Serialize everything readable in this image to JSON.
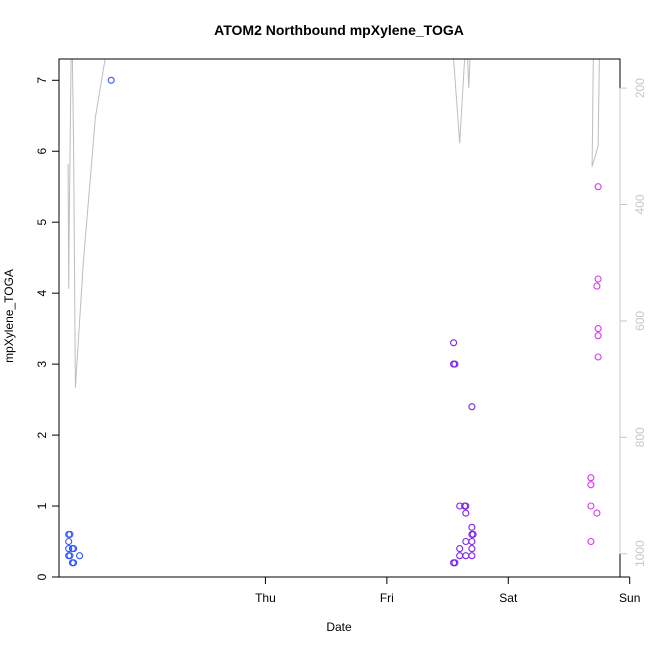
{
  "chart_data": {
    "type": "scatter",
    "title": "ATOM2 Northbound mpXylene_TOGA",
    "xlabel": "Date",
    "ylabel": "mpXylene_TOGA",
    "x_ticks": [
      {
        "label": "Thu",
        "day": 1.0
      },
      {
        "label": "Fri",
        "day": 2.0
      },
      {
        "label": "Sat",
        "day": 3.0
      },
      {
        "label": "Sun",
        "day": 4.0
      }
    ],
    "xlim_days": [
      -0.7,
      3.92
    ],
    "ylim": [
      0,
      7.3
    ],
    "y_ticks": [
      0,
      1,
      2,
      3,
      4,
      5,
      6,
      7
    ],
    "y_right": {
      "reversed": true,
      "ylim": [
        1040,
        150
      ],
      "ticks": [
        200,
        400,
        600,
        800,
        1000
      ],
      "color": "#c8c8c8"
    },
    "grid": false,
    "legend": "none",
    "series": [
      {
        "color": "#3355ff",
        "points": [
          {
            "x": -0.62,
            "y": 0.6
          },
          {
            "x": -0.61,
            "y": 0.6
          },
          {
            "x": -0.62,
            "y": 0.5
          },
          {
            "x": -0.62,
            "y": 0.4
          },
          {
            "x": -0.61,
            "y": 0.3
          },
          {
            "x": -0.62,
            "y": 0.3
          },
          {
            "x": -0.59,
            "y": 0.4
          },
          {
            "x": -0.58,
            "y": 0.4
          },
          {
            "x": -0.59,
            "y": 0.2
          },
          {
            "x": -0.58,
            "y": 0.2
          },
          {
            "x": -0.53,
            "y": 0.3
          },
          {
            "x": -0.27,
            "y": 7.0
          }
        ]
      },
      {
        "color": "#7a22ee",
        "points": [
          {
            "x": 2.55,
            "y": 3.3
          },
          {
            "x": 2.55,
            "y": 3.0
          },
          {
            "x": 2.56,
            "y": 3.0
          },
          {
            "x": 2.55,
            "y": 0.2
          },
          {
            "x": 2.56,
            "y": 0.2
          },
          {
            "x": 2.6,
            "y": 1.0
          },
          {
            "x": 2.6,
            "y": 0.4
          },
          {
            "x": 2.6,
            "y": 0.3
          },
          {
            "x": 2.64,
            "y": 1.0
          },
          {
            "x": 2.65,
            "y": 1.0
          },
          {
            "x": 2.65,
            "y": 0.9
          },
          {
            "x": 2.65,
            "y": 0.5
          },
          {
            "x": 2.65,
            "y": 0.3
          },
          {
            "x": 2.7,
            "y": 2.4
          },
          {
            "x": 2.7,
            "y": 0.7
          },
          {
            "x": 2.7,
            "y": 0.6
          },
          {
            "x": 2.71,
            "y": 0.6
          },
          {
            "x": 2.7,
            "y": 0.5
          },
          {
            "x": 2.7,
            "y": 0.4
          },
          {
            "x": 2.7,
            "y": 0.3
          }
        ]
      },
      {
        "color": "#dd33ee",
        "points": [
          {
            "x": 3.74,
            "y": 5.5
          },
          {
            "x": 3.74,
            "y": 4.2
          },
          {
            "x": 3.73,
            "y": 4.1
          },
          {
            "x": 3.74,
            "y": 3.5
          },
          {
            "x": 3.74,
            "y": 3.4
          },
          {
            "x": 3.74,
            "y": 3.1
          },
          {
            "x": 3.68,
            "y": 1.4
          },
          {
            "x": 3.68,
            "y": 1.3
          },
          {
            "x": 3.68,
            "y": 1.0
          },
          {
            "x": 3.73,
            "y": 0.9
          },
          {
            "x": 3.68,
            "y": 0.5
          }
        ]
      }
    ],
    "overlay_line": {
      "color": "#bebebe",
      "axis": "right",
      "segments": [
        [
          {
            "x": -0.625,
            "y": 330
          },
          {
            "x": -0.62,
            "y": 545
          },
          {
            "x": -0.615,
            "y": 420
          },
          {
            "x": -0.6,
            "y": 150
          },
          {
            "x": -0.59,
            "y": 150
          },
          {
            "x": -0.58,
            "y": 300
          },
          {
            "x": -0.565,
            "y": 715
          },
          {
            "x": -0.5,
            "y": 500
          },
          {
            "x": -0.4,
            "y": 250
          },
          {
            "x": -0.32,
            "y": 150
          }
        ],
        [
          {
            "x": 2.55,
            "y": 150
          },
          {
            "x": 2.6,
            "y": 295
          },
          {
            "x": 2.64,
            "y": 150
          }
        ],
        [
          {
            "x": 2.665,
            "y": 150
          },
          {
            "x": 2.675,
            "y": 200
          },
          {
            "x": 2.685,
            "y": 150
          }
        ],
        [
          {
            "x": 3.7,
            "y": 150
          },
          {
            "x": 3.69,
            "y": 335
          },
          {
            "x": 3.74,
            "y": 300
          },
          {
            "x": 3.75,
            "y": 150
          }
        ]
      ]
    }
  }
}
